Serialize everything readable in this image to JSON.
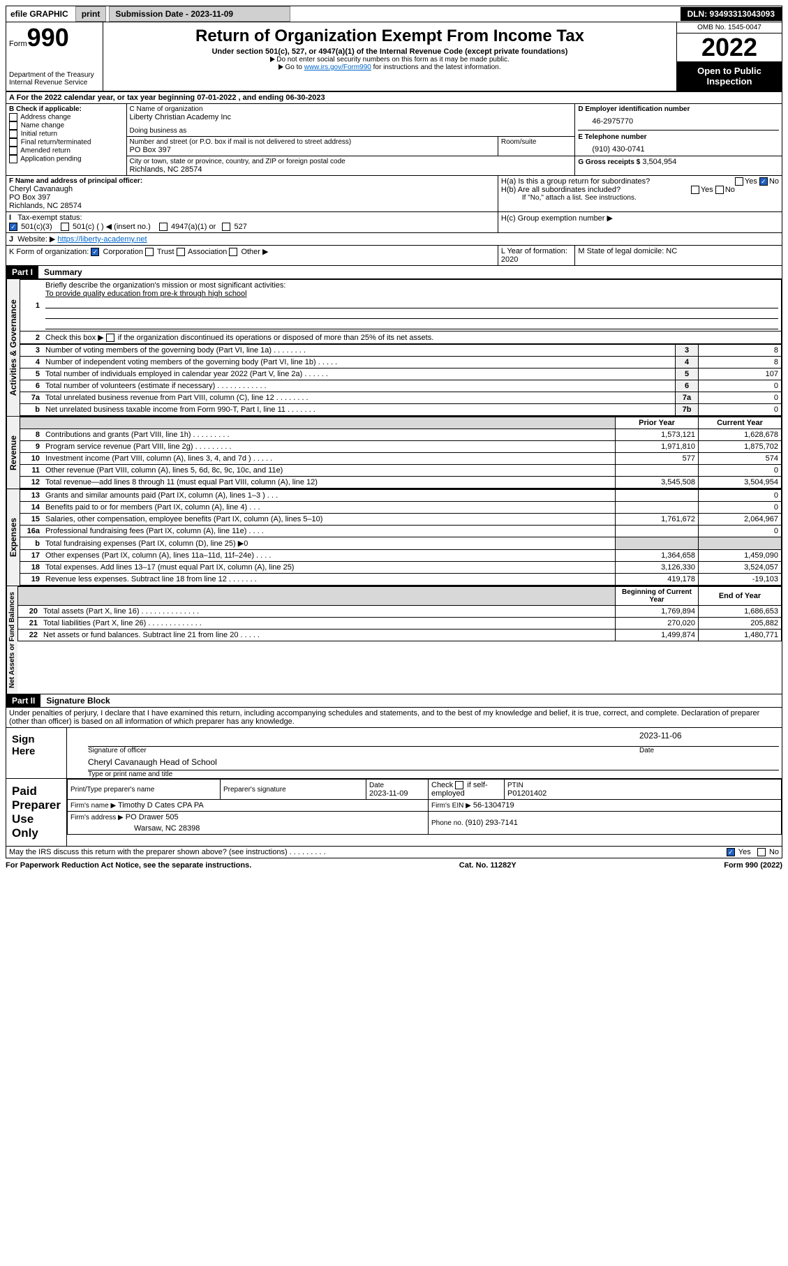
{
  "topbar": {
    "efile_label": "efile GRAPHIC",
    "print_btn": "print",
    "submission_label": "Submission Date - 2023-11-09",
    "dln": "DLN: 93493313043093"
  },
  "header": {
    "form_label": "Form",
    "form_number": "990",
    "dept": "Department of the Treasury",
    "irs": "Internal Revenue Service",
    "title": "Return of Organization Exempt From Income Tax",
    "subtitle": "Under section 501(c), 527, or 4947(a)(1) of the Internal Revenue Code (except private foundations)",
    "note1": "Do not enter social security numbers on this form as it may be made public.",
    "note2_pre": "Go to ",
    "note2_link": "www.irs.gov/Form990",
    "note2_post": " for instructions and the latest information.",
    "omb": "OMB No. 1545-0047",
    "year": "2022",
    "opi": "Open to Public Inspection"
  },
  "period": {
    "line_a": "A For the 2022 calendar year, or tax year beginning 07-01-2022    , and ending 06-30-2023"
  },
  "boxB": {
    "label": "B Check if applicable:",
    "opts": [
      "Address change",
      "Name change",
      "Initial return",
      "Final return/terminated",
      "Amended return",
      "Application pending"
    ]
  },
  "boxC": {
    "name_label": "C Name of organization",
    "name": "Liberty Christian Academy Inc",
    "dba_label": "Doing business as",
    "addr_label": "Number and street (or P.O. box if mail is not delivered to street address)",
    "room_label": "Room/suite",
    "addr": "PO Box 397",
    "city_label": "City or town, state or province, country, and ZIP or foreign postal code",
    "city": "Richlands, NC  28574"
  },
  "boxD": {
    "label": "D Employer identification number",
    "val": "46-2975770"
  },
  "boxE": {
    "label": "E Telephone number",
    "val": "(910) 430-0741"
  },
  "boxG": {
    "label": "G Gross receipts $",
    "val": "3,504,954"
  },
  "boxF": {
    "label": "F  Name and address of principal officer:",
    "name": "Cheryl Cavanaugh",
    "addr1": "PO Box 397",
    "addr2": "Richlands, NC  28574"
  },
  "boxH": {
    "a_label": "H(a)  Is this a group return for subordinates?",
    "b_label": "H(b)  Are all subordinates included?",
    "b_note": "If \"No,\" attach a list. See instructions.",
    "c_label": "H(c)  Group exemption number ▶",
    "yes": "Yes",
    "no": "No"
  },
  "boxI": {
    "label": "Tax-exempt status:",
    "o1": "501(c)(3)",
    "o2": "501(c) (  ) ◀ (insert no.)",
    "o3": "4947(a)(1) or",
    "o4": "527"
  },
  "boxJ": {
    "label": "Website: ▶",
    "val": "https://liberty-academy.net"
  },
  "boxK": {
    "label": "K Form of organization:",
    "opts": [
      "Corporation",
      "Trust",
      "Association",
      "Other ▶"
    ]
  },
  "boxL": {
    "label": "L Year of formation: 2020"
  },
  "boxM": {
    "label": "M State of legal domicile: NC"
  },
  "part1": {
    "hdr": "Part I",
    "title": "Summary"
  },
  "vlabels": {
    "ag": "Activities & Governance",
    "rev": "Revenue",
    "exp": "Expenses",
    "na": "Net Assets or Fund Balances"
  },
  "q1": {
    "label": "Briefly describe the organization's mission or most significant activities:",
    "val": "To provide quality education from pre-k through high school"
  },
  "q2": "Check this box ▶      if the organization discontinued its operations or disposed of more than 25% of its net assets.",
  "lines_gov": [
    {
      "n": "3",
      "d": "Number of voting members of the governing body (Part VI, line 1a)   .    .    .    .    .    .    .    .",
      "b": "3",
      "v": "8"
    },
    {
      "n": "4",
      "d": "Number of independent voting members of the governing body (Part VI, line 1b)   .    .    .    .    .",
      "b": "4",
      "v": "8"
    },
    {
      "n": "5",
      "d": "Total number of individuals employed in calendar year 2022 (Part V, line 2a)   .    .    .    .    .    .",
      "b": "5",
      "v": "107"
    },
    {
      "n": "6",
      "d": "Total number of volunteers (estimate if necessary)   .    .    .    .    .    .    .    .    .    .    .    .",
      "b": "6",
      "v": "0"
    },
    {
      "n": "7a",
      "d": "Total unrelated business revenue from Part VIII, column (C), line 12   .    .    .    .    .    .    .    .",
      "b": "7a",
      "v": "0"
    },
    {
      "n": "b",
      "d": "Net unrelated business taxable income from Form 990-T, Part I, line 11   .    .    .    .    .    .    .",
      "b": "7b",
      "v": "0"
    }
  ],
  "col_hdrs": {
    "prior": "Prior Year",
    "current": "Current Year"
  },
  "lines_rev": [
    {
      "n": "8",
      "d": "Contributions and grants (Part VIII, line 1h)   .    .    .    .    .    .    .    .    .",
      "p": "1,573,121",
      "c": "1,628,678"
    },
    {
      "n": "9",
      "d": "Program service revenue (Part VIII, line 2g)   .    .    .    .    .    .    .    .    .",
      "p": "1,971,810",
      "c": "1,875,702"
    },
    {
      "n": "10",
      "d": "Investment income (Part VIII, column (A), lines 3, 4, and 7d )   .    .    .    .    .",
      "p": "577",
      "c": "574"
    },
    {
      "n": "11",
      "d": "Other revenue (Part VIII, column (A), lines 5, 6d, 8c, 9c, 10c, and 11e)",
      "p": "",
      "c": "0"
    },
    {
      "n": "12",
      "d": "Total revenue—add lines 8 through 11 (must equal Part VIII, column (A), line 12)",
      "p": "3,545,508",
      "c": "3,504,954"
    }
  ],
  "lines_exp": [
    {
      "n": "13",
      "d": "Grants and similar amounts paid (Part IX, column (A), lines 1–3 )   .    .    .",
      "p": "",
      "c": "0"
    },
    {
      "n": "14",
      "d": "Benefits paid to or for members (Part IX, column (A), line 4)   .    .    .",
      "p": "",
      "c": "0"
    },
    {
      "n": "15",
      "d": "Salaries, other compensation, employee benefits (Part IX, column (A), lines 5–10)",
      "p": "1,761,672",
      "c": "2,064,967"
    },
    {
      "n": "16a",
      "d": "Professional fundraising fees (Part IX, column (A), line 11e)   .    .    .    .",
      "p": "",
      "c": "0"
    },
    {
      "n": "b",
      "d": "Total fundraising expenses (Part IX, column (D), line 25) ▶0",
      "p": "shade",
      "c": "shade"
    },
    {
      "n": "17",
      "d": "Other expenses (Part IX, column (A), lines 11a–11d, 11f–24e)   .    .    .    .",
      "p": "1,364,658",
      "c": "1,459,090"
    },
    {
      "n": "18",
      "d": "Total expenses. Add lines 13–17 (must equal Part IX, column (A), line 25)",
      "p": "3,126,330",
      "c": "3,524,057"
    },
    {
      "n": "19",
      "d": "Revenue less expenses. Subtract line 18 from line 12   .    .    .    .    .    .    .",
      "p": "419,178",
      "c": "-19,103"
    }
  ],
  "col_hdrs2": {
    "prior": "Beginning of Current Year",
    "current": "End of Year"
  },
  "lines_na": [
    {
      "n": "20",
      "d": "Total assets (Part X, line 16)   .    .    .    .    .    .    .    .    .    .    .    .    .    .",
      "p": "1,769,894",
      "c": "1,686,653"
    },
    {
      "n": "21",
      "d": "Total liabilities (Part X, line 26)   .    .    .    .    .    .    .    .    .    .    .    .    .",
      "p": "270,020",
      "c": "205,882"
    },
    {
      "n": "22",
      "d": "Net assets or fund balances. Subtract line 21 from line 20   .    .    .    .    .",
      "p": "1,499,874",
      "c": "1,480,771"
    }
  ],
  "part2": {
    "hdr": "Part II",
    "title": "Signature Block"
  },
  "penalties": "Under penalties of perjury, I declare that I have examined this return, including accompanying schedules and statements, and to the best of my knowledge and belief, it is true, correct, and complete. Declaration of preparer (other than officer) is based on all information of which preparer has any knowledge.",
  "sign": {
    "here": "Sign Here",
    "sig_label": "Signature of officer",
    "date": "2023-11-06",
    "date_label": "Date",
    "name": "Cheryl Cavanaugh  Head of School",
    "name_label": "Type or print name and title"
  },
  "paid": {
    "label": "Paid Preparer Use Only",
    "col1": "Print/Type preparer's name",
    "col2": "Preparer's signature",
    "col3": "Date",
    "date": "2023-11-09",
    "check_label": "Check        if self-employed",
    "ptin_label": "PTIN",
    "ptin": "P01201402",
    "firm_name_label": "Firm's name    ▶",
    "firm_name": "Timothy D Cates CPA PA",
    "firm_ein_label": "Firm's EIN ▶",
    "firm_ein": "56-1304719",
    "firm_addr_label": "Firm's address ▶",
    "firm_addr1": "PO Drawer 505",
    "firm_addr2": "Warsaw, NC  28398",
    "phone_label": "Phone no.",
    "phone": "(910) 293-7141"
  },
  "discuss": {
    "q": "May the IRS discuss this return with the preparer shown above? (see instructions)   .    .    .    .    .    .    .    .    .",
    "yes": "Yes",
    "no": "No"
  },
  "footer": {
    "left": "For Paperwork Reduction Act Notice, see the separate instructions.",
    "mid": "Cat. No. 11282Y",
    "right": "Form 990 (2022)"
  }
}
